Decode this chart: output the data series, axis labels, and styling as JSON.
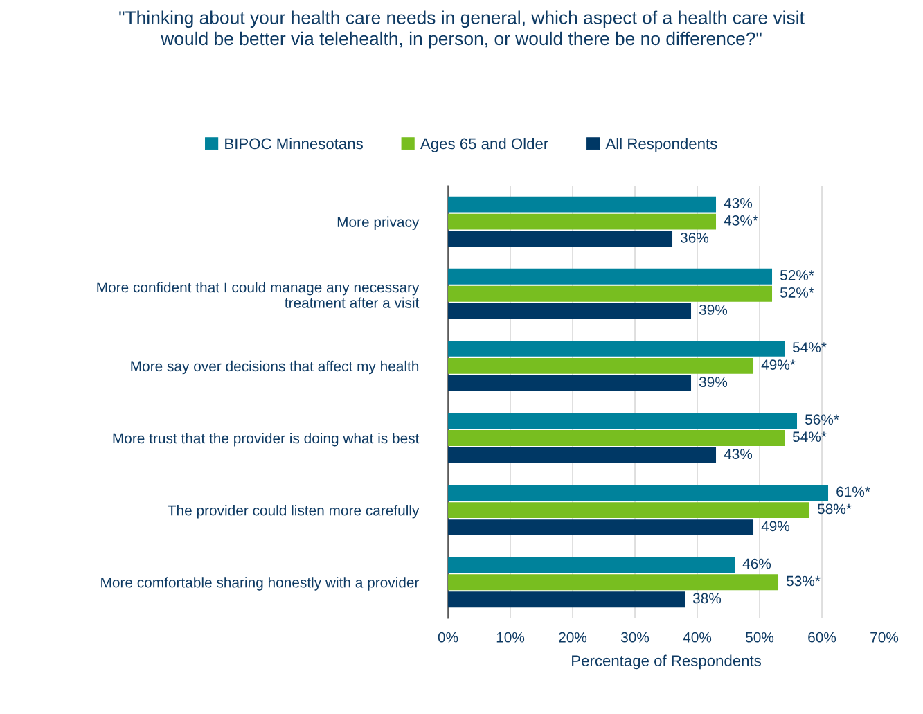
{
  "chart_data": {
    "type": "bar",
    "orientation": "horizontal",
    "title": "\"Thinking about your health care needs in general, which aspect of a health care visit would be better via telehealth, in person, or would there be no difference?\"",
    "xlabel": "Percentage of Respondents",
    "categories": [
      "More privacy",
      "More confident that I could manage any necessary treatment after a visit",
      "More say over decisions that affect my health",
      "More trust that the provider is doing what is best",
      "The provider could listen more carefully",
      "More comfortable sharing honestly with a provider"
    ],
    "series": [
      {
        "name": "BIPOC Minnesotans",
        "color": "#00829b",
        "values": [
          43,
          52,
          54,
          56,
          61,
          46
        ],
        "value_labels": [
          "43%",
          "52%*",
          "54%*",
          "56%*",
          "61%*",
          "46%"
        ]
      },
      {
        "name": "Ages 65 and Older",
        "color": "#78be20",
        "values": [
          43,
          52,
          49,
          54,
          58,
          53
        ],
        "value_labels": [
          "43%*",
          "52%*",
          "49%*",
          "54%*",
          "58%*",
          "53%*"
        ]
      },
      {
        "name": "All Respondents",
        "color": "#003865",
        "values": [
          36,
          39,
          39,
          43,
          49,
          38
        ],
        "value_labels": [
          "36%",
          "39%",
          "39%",
          "43%",
          "49%",
          "38%"
        ]
      }
    ],
    "xlim": [
      0,
      70
    ],
    "xticks": [
      {
        "value": 0,
        "label": "0%"
      },
      {
        "value": 10,
        "label": "10%"
      },
      {
        "value": 20,
        "label": "20%"
      },
      {
        "value": 30,
        "label": "30%"
      },
      {
        "value": 40,
        "label": "40%"
      },
      {
        "value": 50,
        "label": "50%"
      },
      {
        "value": 60,
        "label": "60%"
      },
      {
        "value": 70,
        "label": "70%"
      }
    ],
    "grid": "x",
    "legend": "top"
  }
}
